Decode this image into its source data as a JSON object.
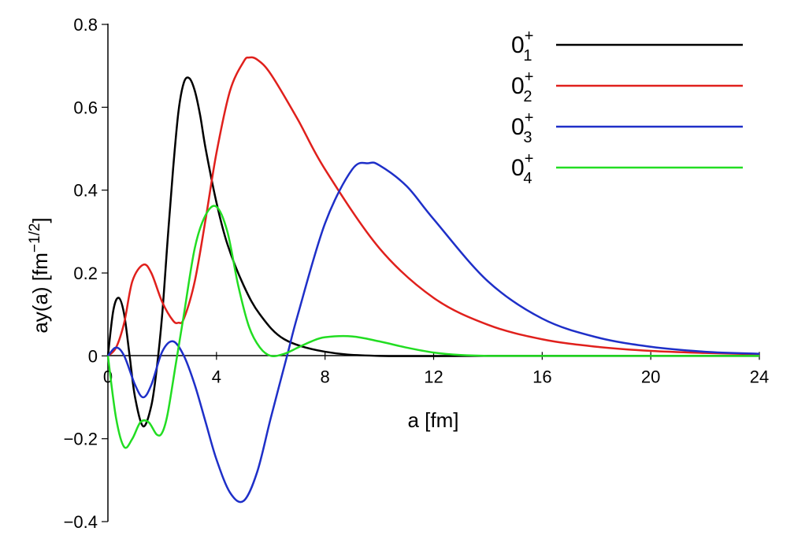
{
  "chart_data": {
    "type": "line",
    "xlabel": "a [fm]",
    "ylabel": "ay(a) [fm−1/2]",
    "ylabel_parts": {
      "main": "ay(a) [fm",
      "sup": "−1/2",
      "close": "]"
    },
    "xlim": [
      0,
      24
    ],
    "ylim": [
      -0.4,
      0.8
    ],
    "x_ticks": [
      0,
      4,
      8,
      12,
      16,
      20,
      24
    ],
    "x_tick_labels": [
      "0",
      "4",
      "8",
      "12",
      "16",
      "20",
      "24"
    ],
    "y_ticks": [
      -0.4,
      -0.2,
      0,
      0.2,
      0.4,
      0.6,
      0.8
    ],
    "y_tick_labels": [
      "−0.4",
      "−0.2",
      "0",
      "0.2",
      "0.4",
      "0.6",
      "0.8"
    ],
    "grid": false,
    "legend_position": "top-right",
    "series": [
      {
        "name": "0+1",
        "label_base": "0",
        "label_sup": "+",
        "label_sub": "1",
        "color": "#000000",
        "x": [
          0,
          0.2,
          0.4,
          0.6,
          0.8,
          1.0,
          1.3,
          1.6,
          1.8,
          2.0,
          2.2,
          2.4,
          2.6,
          2.8,
          3.0,
          3.2,
          3.4,
          3.6,
          4.0,
          4.4,
          5.0,
          5.6,
          6.5,
          8.0,
          10.0,
          14.0,
          24.0
        ],
        "y": [
          0,
          0.11,
          0.14,
          0.1,
          0.0,
          -0.1,
          -0.17,
          -0.12,
          -0.03,
          0.1,
          0.28,
          0.45,
          0.59,
          0.66,
          0.67,
          0.64,
          0.58,
          0.5,
          0.37,
          0.27,
          0.17,
          0.1,
          0.04,
          0.01,
          0.0,
          0.0,
          0.0
        ]
      },
      {
        "name": "0+2",
        "label_base": "0",
        "label_sup": "+",
        "label_sub": "2",
        "color": "#e0201c",
        "x": [
          0,
          0.3,
          0.6,
          0.9,
          1.3,
          1.6,
          2.0,
          2.4,
          2.6,
          2.8,
          3.2,
          3.6,
          4.0,
          4.5,
          5.0,
          5.2,
          5.5,
          6.0,
          7.0,
          8.0,
          10.0,
          12.0,
          14.0,
          16.0,
          18.0,
          20.0,
          22.0,
          24.0
        ],
        "y": [
          0,
          0.02,
          0.08,
          0.18,
          0.22,
          0.2,
          0.13,
          0.085,
          0.08,
          0.09,
          0.18,
          0.33,
          0.49,
          0.64,
          0.71,
          0.72,
          0.715,
          0.68,
          0.57,
          0.45,
          0.26,
          0.14,
          0.075,
          0.04,
          0.022,
          0.012,
          0.007,
          0.004
        ]
      },
      {
        "name": "0+3",
        "label_base": "0",
        "label_sup": "+",
        "label_sub": "3",
        "color": "#1e2fc8",
        "x": [
          0,
          0.3,
          0.6,
          1.0,
          1.3,
          1.6,
          2.0,
          2.4,
          2.8,
          3.2,
          3.6,
          4.0,
          4.5,
          5.0,
          5.5,
          6.0,
          6.6,
          7.0,
          8.0,
          9.0,
          9.6,
          10.0,
          11.0,
          12.0,
          14.0,
          16.0,
          18.0,
          20.0,
          22.0,
          24.0
        ],
        "y": [
          0,
          0.02,
          0.0,
          -0.07,
          -0.1,
          -0.07,
          0.01,
          0.035,
          0.0,
          -0.07,
          -0.16,
          -0.25,
          -0.33,
          -0.35,
          -0.28,
          -0.15,
          0.0,
          0.1,
          0.32,
          0.45,
          0.465,
          0.46,
          0.41,
          0.33,
          0.18,
          0.09,
          0.045,
          0.022,
          0.01,
          0.005
        ]
      },
      {
        "name": "0+4",
        "label_base": "0",
        "label_sup": "+",
        "label_sub": "4",
        "color": "#22dd22",
        "x": [
          0,
          0.3,
          0.6,
          0.9,
          1.2,
          1.5,
          1.8,
          2.0,
          2.2,
          2.5,
          2.8,
          3.2,
          3.6,
          4.0,
          4.4,
          4.8,
          5.2,
          5.6,
          6.0,
          6.5,
          7.0,
          7.5,
          8.0,
          9.0,
          10.0,
          11.0,
          12.0,
          13.0,
          14.0,
          16.0,
          24.0
        ],
        "y": [
          0,
          -0.15,
          -0.22,
          -0.2,
          -0.16,
          -0.16,
          -0.19,
          -0.185,
          -0.14,
          -0.02,
          0.1,
          0.26,
          0.34,
          0.36,
          0.3,
          0.17,
          0.07,
          0.02,
          0.0,
          0.005,
          0.02,
          0.035,
          0.045,
          0.047,
          0.035,
          0.02,
          0.008,
          0.002,
          0.0,
          0.0,
          0.0
        ]
      }
    ]
  }
}
